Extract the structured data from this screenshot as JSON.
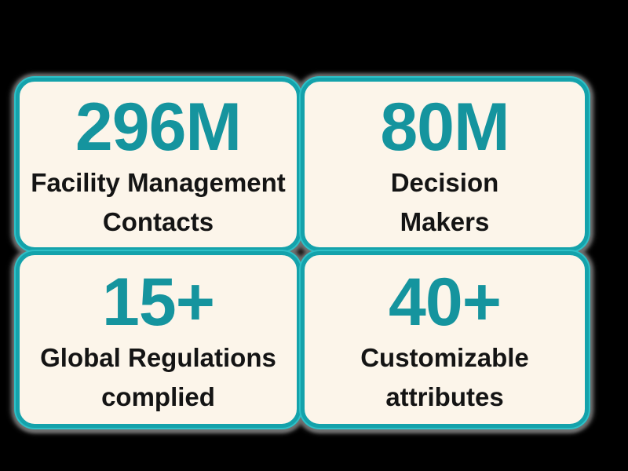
{
  "colors": {
    "background": "#000000",
    "card_background": "#FCF5EA",
    "card_border_teal": "#14A2AB",
    "card_border_light_rim": "#2EC0C7",
    "stat_value_teal": "#15949E",
    "label_black": "#141414",
    "shadow_grey": "#737373"
  },
  "cards": [
    {
      "value": "296M",
      "label_lines": [
        "Facility Management",
        "Contacts"
      ]
    },
    {
      "value": "80M",
      "label_lines": [
        "Decision",
        "Makers"
      ]
    },
    {
      "value": "15+",
      "label_lines": [
        "Global Regulations",
        "complied"
      ]
    },
    {
      "value": "40+",
      "label_lines": [
        "Customizable",
        "attributes"
      ]
    }
  ],
  "chart_data": {
    "type": "table",
    "title": "",
    "items": [
      {
        "value": "296M",
        "label": "Facility Management Contacts"
      },
      {
        "value": "80M",
        "label": "Decision Makers"
      },
      {
        "value": "15+",
        "label": "Global Regulations complied"
      },
      {
        "value": "40+",
        "label": "Customizable attributes"
      }
    ]
  }
}
